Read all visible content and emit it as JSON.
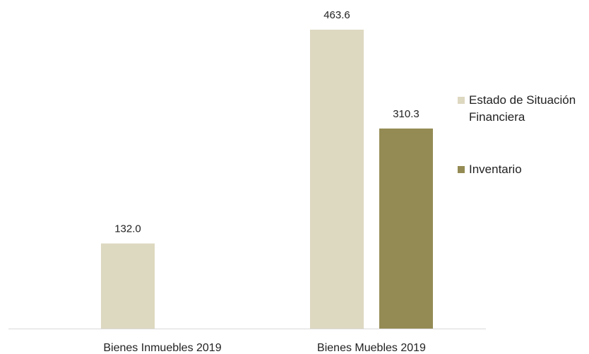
{
  "chart_data": {
    "type": "bar",
    "categories": [
      "Bienes Inmuebles 2019",
      "Bienes Muebles 2019"
    ],
    "series": [
      {
        "name": "Estado de Situación Financiera",
        "values": [
          132.0,
          463.6
        ],
        "labels": [
          "132.0",
          "463.6"
        ],
        "color": "#ddd8c0"
      },
      {
        "name": "Inventario",
        "values": [
          null,
          310.3
        ],
        "labels": [
          null,
          "310.3"
        ],
        "color": "#948b54"
      }
    ],
    "ylim": [
      0,
      463.6
    ],
    "grid": false,
    "axis_line_color": "#d9d9d9",
    "legend_position": "right",
    "title": "",
    "xlabel": "",
    "ylabel": ""
  }
}
